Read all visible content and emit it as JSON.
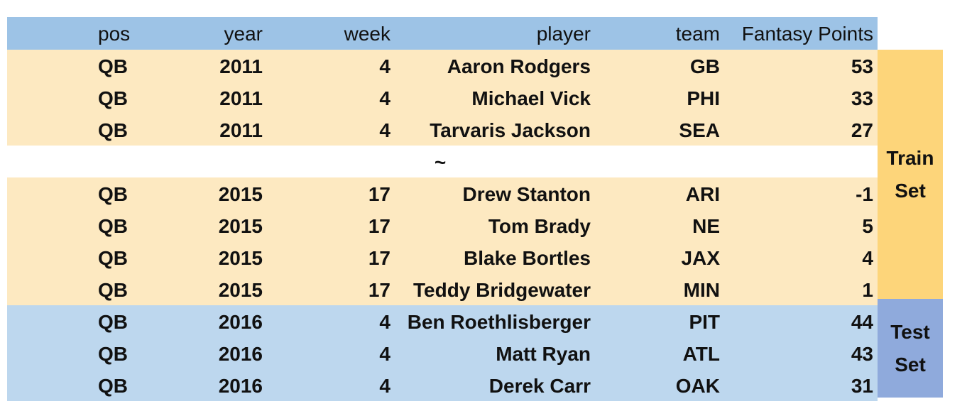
{
  "columns": [
    "pos",
    "year",
    "week",
    "player",
    "team",
    "Fantasy Points"
  ],
  "train_rows_top": [
    {
      "pos": "QB",
      "year": "2011",
      "week": "4",
      "player": "Aaron Rodgers",
      "team": "GB",
      "fp": "53"
    },
    {
      "pos": "QB",
      "year": "2011",
      "week": "4",
      "player": "Michael Vick",
      "team": "PHI",
      "fp": "33"
    },
    {
      "pos": "QB",
      "year": "2011",
      "week": "4",
      "player": "Tarvaris Jackson",
      "team": "SEA",
      "fp": "27"
    }
  ],
  "gap_marker": "~",
  "train_rows_bottom": [
    {
      "pos": "QB",
      "year": "2015",
      "week": "17",
      "player": "Drew Stanton",
      "team": "ARI",
      "fp": "-1"
    },
    {
      "pos": "QB",
      "year": "2015",
      "week": "17",
      "player": "Tom Brady",
      "team": "NE",
      "fp": "5"
    },
    {
      "pos": "QB",
      "year": "2015",
      "week": "17",
      "player": "Blake Bortles",
      "team": "JAX",
      "fp": "4"
    },
    {
      "pos": "QB",
      "year": "2015",
      "week": "17",
      "player": "Teddy Bridgewater",
      "team": "MIN",
      "fp": "1"
    }
  ],
  "test_rows": [
    {
      "pos": "QB",
      "year": "2016",
      "week": "4",
      "player": "Ben Roethlisberger",
      "team": "PIT",
      "fp": "44"
    },
    {
      "pos": "QB",
      "year": "2016",
      "week": "4",
      "player": "Matt Ryan",
      "team": "ATL",
      "fp": "43"
    },
    {
      "pos": "QB",
      "year": "2016",
      "week": "4",
      "player": "Derek Carr",
      "team": "OAK",
      "fp": "31"
    }
  ],
  "labels": {
    "train_line1": "Train",
    "train_line2": "Set",
    "test_line1": "Test",
    "test_line2": "Set"
  },
  "colors": {
    "header": "#9dc3e6",
    "train_rows": "#fde9c1",
    "train_label": "#fdd57a",
    "test_rows": "#bdd7ee",
    "test_label": "#8faadc"
  }
}
